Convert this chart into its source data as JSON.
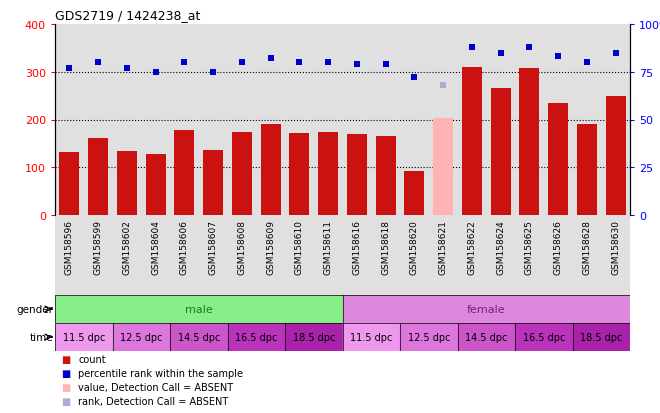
{
  "title": "GDS2719 / 1424238_at",
  "samples": [
    "GSM158596",
    "GSM158599",
    "GSM158602",
    "GSM158604",
    "GSM158606",
    "GSM158607",
    "GSM158608",
    "GSM158609",
    "GSM158610",
    "GSM158611",
    "GSM158616",
    "GSM158618",
    "GSM158620",
    "GSM158621",
    "GSM158622",
    "GSM158624",
    "GSM158625",
    "GSM158626",
    "GSM158628",
    "GSM158630"
  ],
  "bar_values": [
    132,
    162,
    134,
    128,
    178,
    136,
    173,
    190,
    172,
    173,
    170,
    166,
    92,
    203,
    310,
    265,
    308,
    235,
    190,
    250
  ],
  "bar_absent": [
    false,
    false,
    false,
    false,
    false,
    false,
    false,
    false,
    false,
    false,
    false,
    false,
    false,
    true,
    false,
    false,
    false,
    false,
    false,
    false
  ],
  "rank_values": [
    77,
    80,
    77,
    75,
    80,
    75,
    80,
    82,
    80,
    80,
    79,
    79,
    72,
    68,
    88,
    85,
    88,
    83,
    80,
    85
  ],
  "rank_absent": [
    false,
    false,
    false,
    false,
    false,
    false,
    false,
    false,
    false,
    false,
    false,
    false,
    false,
    true,
    false,
    false,
    false,
    false,
    false,
    false
  ],
  "bar_color": "#CC1111",
  "bar_absent_color": "#FFB3B3",
  "rank_color": "#0000CC",
  "rank_absent_color": "#AAAADD",
  "gender_male_color": "#88EE88",
  "gender_female_color": "#DD88DD",
  "time_colors": [
    "#EE99EE",
    "#DD77DD",
    "#CC55CC",
    "#BB33BB",
    "#AA22AA"
  ],
  "ylim_left": [
    0,
    400
  ],
  "ylim_right": [
    0,
    100
  ],
  "yticks_left": [
    0,
    100,
    200,
    300,
    400
  ],
  "yticks_right": [
    0,
    25,
    50,
    75,
    100
  ],
  "grid_values": [
    100,
    200,
    300
  ],
  "col_bg_color": "#E0E0E0",
  "time_labels": [
    "11.5 dpc",
    "12.5 dpc",
    "14.5 dpc",
    "16.5 dpc",
    "18.5 dpc",
    "11.5 dpc",
    "12.5 dpc",
    "14.5 dpc",
    "16.5 dpc",
    "18.5 dpc"
  ]
}
